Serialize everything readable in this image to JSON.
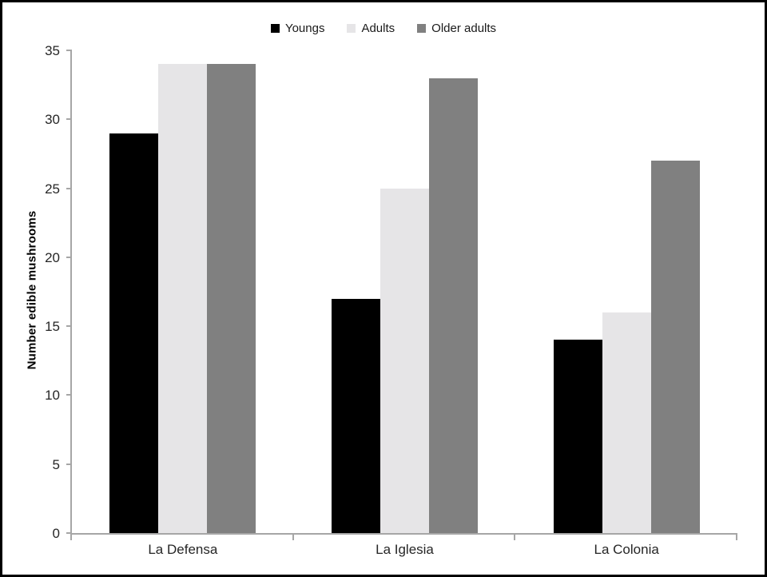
{
  "figure": {
    "background": "#ffffff",
    "border_color": "#000000"
  },
  "chart_data": {
    "type": "bar",
    "title": "",
    "xlabel": "",
    "ylabel": "Number edible mushrooms",
    "categories": [
      "La Defensa",
      "La Iglesia",
      "La Colonia"
    ],
    "series": [
      {
        "name": "Youngs",
        "color": "#000000",
        "values": [
          29,
          17,
          14
        ]
      },
      {
        "name": "Adults",
        "color": "#e6e5e7",
        "values": [
          34,
          25,
          16
        ]
      },
      {
        "name": "Older adults",
        "color": "#808080",
        "values": [
          34,
          33,
          27
        ]
      }
    ],
    "ylim": [
      0,
      35
    ],
    "ytick_step": 5,
    "yticks": [
      0,
      5,
      10,
      15,
      20,
      25,
      30,
      35
    ],
    "grid": false,
    "legend_position": "top-center",
    "axis_color": "#a6a6a6",
    "text_color": "#262626"
  }
}
